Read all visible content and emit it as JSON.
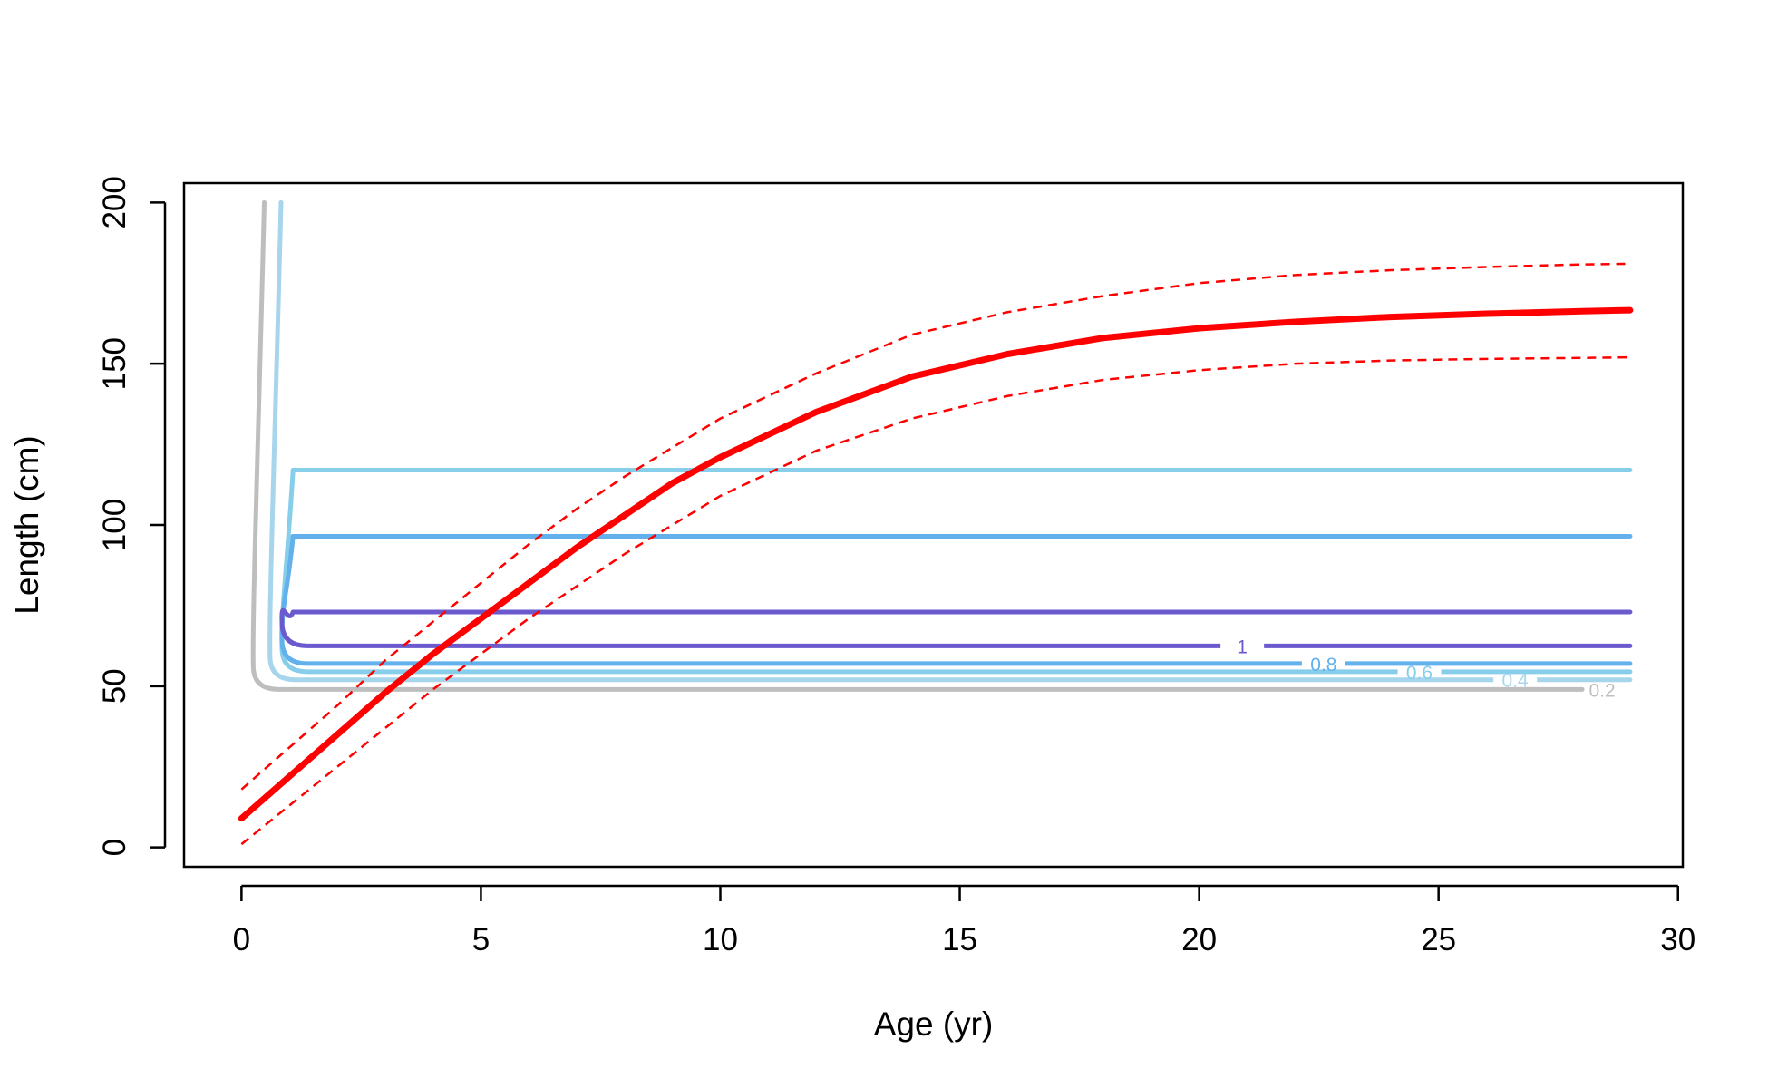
{
  "chart_data": {
    "type": "line",
    "title": "",
    "xlabel": "Age (yr)",
    "ylabel": "Length (cm)",
    "xlim": [
      -1.2,
      30.1
    ],
    "ylim": [
      -6,
      206
    ],
    "x_ticks": [
      0,
      5,
      10,
      15,
      20,
      25,
      30
    ],
    "x_tick_labels": [
      "0",
      "5",
      "10",
      "15",
      "20",
      "25",
      "30"
    ],
    "y_ticks": [
      0,
      50,
      100,
      150,
      200
    ],
    "y_tick_labels": [
      "0",
      "50",
      "100",
      "150",
      "200"
    ],
    "grid": false,
    "growth_curve": {
      "color": "#ff0000",
      "x": [
        0,
        1,
        2,
        3,
        4,
        5,
        6,
        7,
        8,
        9,
        10,
        12,
        14,
        16,
        18,
        20,
        22,
        24,
        26,
        28,
        29
      ],
      "mean": [
        9,
        22,
        35,
        48,
        60,
        71,
        82,
        93,
        103,
        113,
        121,
        135,
        146,
        153,
        158,
        161,
        163,
        164.5,
        165.5,
        166.3,
        166.6
      ],
      "upper": [
        18,
        31,
        44,
        58,
        70,
        82,
        94,
        105,
        115,
        124,
        133,
        147,
        159,
        166,
        171,
        175,
        177.5,
        179,
        180,
        180.8,
        181
      ],
      "lower": [
        1,
        13,
        25,
        37,
        49,
        60,
        71,
        81,
        91,
        100,
        109,
        123,
        133,
        140,
        145,
        148,
        150,
        151,
        151.5,
        151.8,
        152
      ]
    },
    "contours": [
      {
        "level": 0.2,
        "label": "0.2",
        "color": "#bebebe",
        "x_start": 0.4,
        "x_end": 28.0,
        "top": 200,
        "bottom": 49
      },
      {
        "level": 0.4,
        "label": "0.4",
        "color": "#a6d5ec",
        "x_start": 0.75,
        "x_end": 29.0,
        "top": 200,
        "bottom": 52
      },
      {
        "level": 0.6,
        "label": "0.6",
        "color": "#87ceeb",
        "x_start": 1.0,
        "x_end": 29.0,
        "top": 117,
        "bottom": 54.5
      },
      {
        "level": 0.8,
        "label": "0.8",
        "color": "#62b0ec",
        "x_start": 1.0,
        "x_end": 29.0,
        "top": 96.5,
        "bottom": 57
      },
      {
        "level": 1.0,
        "label": "1",
        "color": "#6a5acd",
        "x_start": 1.0,
        "x_end": 29.0,
        "top": 73,
        "bottom": 62.5
      }
    ]
  }
}
